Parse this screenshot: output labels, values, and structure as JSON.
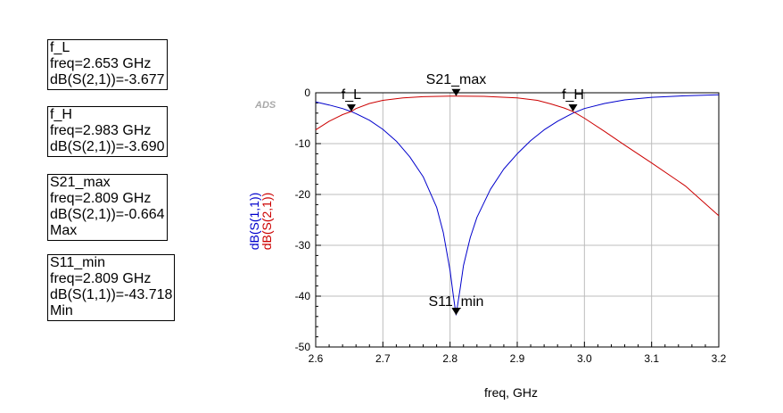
{
  "marker_boxes": [
    {
      "lines": [
        "f_L",
        "freq=2.653 GHz",
        "dB(S(2,1))=-3.677"
      ]
    },
    {
      "lines": [
        "f_H",
        "freq=2.983 GHz",
        "dB(S(2,1))=-3.690"
      ]
    },
    {
      "lines": [
        "S21_max",
        "freq=2.809 GHz",
        "dB(S(2,1))=-0.664",
        "Max"
      ]
    },
    {
      "lines": [
        "S11_min",
        "freq=2.809 GHz",
        "dB(S(1,1))=-43.718",
        "Min"
      ]
    }
  ],
  "chart_data": {
    "type": "line",
    "watermark": "ADS",
    "xlabel": "freq, GHz",
    "ylabels": [
      "dB(S(1,1))",
      "dB(S(2,1))"
    ],
    "xlim": [
      2.6,
      3.2
    ],
    "ylim": [
      -50,
      0
    ],
    "xticks": [
      2.6,
      2.7,
      2.8,
      2.9,
      3.0,
      3.1,
      3.2
    ],
    "xtick_labels": [
      "2.6",
      "2.7",
      "2.8",
      "2.9",
      "3.0",
      "3.1",
      "3.2"
    ],
    "yticks": [
      0,
      -10,
      -20,
      -30,
      -40,
      -50
    ],
    "ytick_labels": [
      "0",
      "-10",
      "-20",
      "-30",
      "-40",
      "-50"
    ],
    "grid": true,
    "series": [
      {
        "name": "dB(S(1,1))",
        "color": "#0000cc",
        "x": [
          2.6,
          2.62,
          2.64,
          2.653,
          2.66,
          2.68,
          2.7,
          2.72,
          2.74,
          2.76,
          2.78,
          2.79,
          2.8,
          2.805,
          2.809,
          2.815,
          2.82,
          2.83,
          2.84,
          2.86,
          2.88,
          2.9,
          2.92,
          2.94,
          2.96,
          2.983,
          3.0,
          3.03,
          3.06,
          3.1,
          3.15,
          3.2
        ],
        "y": [
          -1.8,
          -2.4,
          -3.1,
          -3.7,
          -4.1,
          -5.4,
          -7.2,
          -9.5,
          -12.6,
          -16.5,
          -22.5,
          -27.5,
          -35.0,
          -40.0,
          -43.7,
          -38.5,
          -34.0,
          -28.5,
          -24.5,
          -19.0,
          -15.0,
          -12.0,
          -9.4,
          -7.3,
          -5.6,
          -4.0,
          -3.1,
          -2.1,
          -1.4,
          -0.9,
          -0.6,
          -0.4
        ]
      },
      {
        "name": "dB(S(2,1))",
        "color": "#cc0000",
        "x": [
          2.6,
          2.62,
          2.64,
          2.653,
          2.66,
          2.68,
          2.7,
          2.73,
          2.76,
          2.8,
          2.809,
          2.85,
          2.9,
          2.93,
          2.95,
          2.97,
          2.983,
          3.0,
          3.03,
          3.06,
          3.1,
          3.15,
          3.2
        ],
        "y": [
          -7.3,
          -5.6,
          -4.3,
          -3.677,
          -3.1,
          -2.1,
          -1.5,
          -1.0,
          -0.78,
          -0.67,
          -0.664,
          -0.7,
          -1.0,
          -1.5,
          -2.2,
          -3.0,
          -3.69,
          -5.0,
          -7.6,
          -10.3,
          -13.8,
          -18.3,
          -24.2
        ]
      }
    ],
    "markers": [
      {
        "label": "f_L",
        "x": 2.653,
        "y": -3.677
      },
      {
        "label": "S21_max",
        "x": 2.809,
        "y": -0.664
      },
      {
        "label": "f_H",
        "x": 2.983,
        "y": -3.69
      },
      {
        "label": "S11_min",
        "x": 2.809,
        "y": -43.718
      }
    ]
  }
}
